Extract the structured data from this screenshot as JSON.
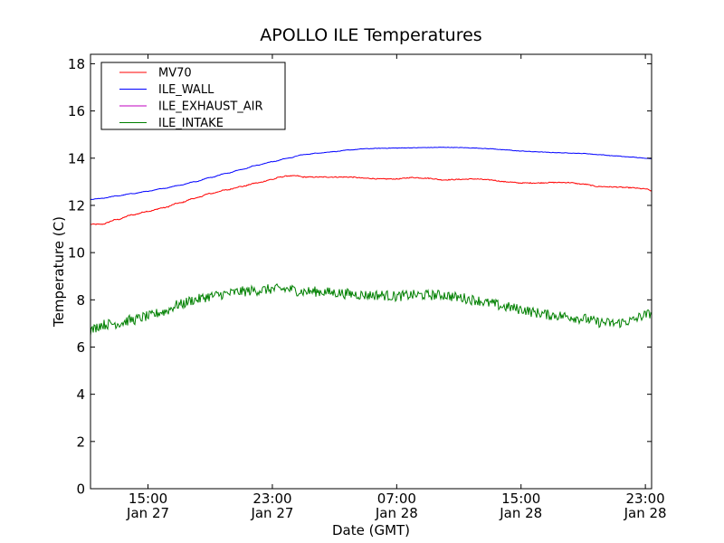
{
  "chart_data": {
    "type": "line",
    "title": "APOLLO ILE Temperatures",
    "xlabel": "Date (GMT)",
    "ylabel": "Temperature (C)",
    "xlim_hours": [
      11.3,
      47.4
    ],
    "ylim": [
      0,
      18.4
    ],
    "yticks": [
      0,
      2,
      4,
      6,
      8,
      10,
      12,
      14,
      16,
      18
    ],
    "xticks": [
      {
        "hour": 15,
        "time": "15:00",
        "date": "Jan 27"
      },
      {
        "hour": 23,
        "time": "23:00",
        "date": "Jan 27"
      },
      {
        "hour": 31,
        "time": "07:00",
        "date": "Jan 28"
      },
      {
        "hour": 39,
        "time": "15:00",
        "date": "Jan 28"
      },
      {
        "hour": 47,
        "time": "23:00",
        "date": "Jan 28"
      }
    ],
    "legend_position": "top-left",
    "series": [
      {
        "name": "MV70",
        "color": "#ff0000",
        "noise": 0.02,
        "points": [
          [
            11.3,
            11.2
          ],
          [
            12,
            11.2
          ],
          [
            13,
            11.4
          ],
          [
            14,
            11.6
          ],
          [
            15,
            11.75
          ],
          [
            16,
            11.9
          ],
          [
            17,
            12.1
          ],
          [
            18,
            12.3
          ],
          [
            19,
            12.5
          ],
          [
            20,
            12.65
          ],
          [
            21,
            12.8
          ],
          [
            22,
            12.95
          ],
          [
            23,
            13.1
          ],
          [
            23.5,
            13.2
          ],
          [
            24,
            13.25
          ],
          [
            24.6,
            13.25
          ],
          [
            25,
            13.2
          ],
          [
            26,
            13.2
          ],
          [
            27,
            13.2
          ],
          [
            28,
            13.2
          ],
          [
            29,
            13.15
          ],
          [
            30,
            13.12
          ],
          [
            31,
            13.12
          ],
          [
            32,
            13.18
          ],
          [
            33,
            13.15
          ],
          [
            34,
            13.08
          ],
          [
            35,
            13.1
          ],
          [
            36,
            13.12
          ],
          [
            37,
            13.08
          ],
          [
            38,
            13.0
          ],
          [
            39,
            12.95
          ],
          [
            40,
            12.95
          ],
          [
            41,
            12.97
          ],
          [
            42,
            12.97
          ],
          [
            43,
            12.9
          ],
          [
            44,
            12.8
          ],
          [
            45,
            12.78
          ],
          [
            46,
            12.75
          ],
          [
            47,
            12.7
          ],
          [
            47.4,
            12.62
          ]
        ]
      },
      {
        "name": "ILE_WALL",
        "color": "#0000ff",
        "noise": 0.01,
        "points": [
          [
            11.3,
            12.25
          ],
          [
            12,
            12.3
          ],
          [
            13,
            12.4
          ],
          [
            14,
            12.5
          ],
          [
            15,
            12.6
          ],
          [
            16,
            12.72
          ],
          [
            17,
            12.85
          ],
          [
            18,
            13.0
          ],
          [
            19,
            13.18
          ],
          [
            20,
            13.35
          ],
          [
            21,
            13.52
          ],
          [
            22,
            13.7
          ],
          [
            23,
            13.85
          ],
          [
            24,
            14.0
          ],
          [
            25,
            14.15
          ],
          [
            26,
            14.22
          ],
          [
            27,
            14.28
          ],
          [
            28,
            14.35
          ],
          [
            29,
            14.4
          ],
          [
            30,
            14.42
          ],
          [
            31,
            14.43
          ],
          [
            32,
            14.44
          ],
          [
            33,
            14.45
          ],
          [
            34,
            14.46
          ],
          [
            35,
            14.45
          ],
          [
            36,
            14.43
          ],
          [
            37,
            14.4
          ],
          [
            38,
            14.35
          ],
          [
            39,
            14.3
          ],
          [
            40,
            14.27
          ],
          [
            41,
            14.24
          ],
          [
            42,
            14.22
          ],
          [
            43,
            14.2
          ],
          [
            44,
            14.15
          ],
          [
            45,
            14.1
          ],
          [
            46,
            14.05
          ],
          [
            47,
            14.0
          ],
          [
            47.4,
            13.98
          ]
        ]
      },
      {
        "name": "ILE_EXHAUST_AIR",
        "color": "#bf00bf",
        "noise": 0,
        "points": []
      },
      {
        "name": "ILE_INTAKE",
        "color": "#008000",
        "noise": 0.22,
        "points": [
          [
            11.3,
            6.7
          ],
          [
            12,
            6.95
          ],
          [
            13,
            7.0
          ],
          [
            14,
            7.15
          ],
          [
            15,
            7.3
          ],
          [
            16,
            7.5
          ],
          [
            17,
            7.8
          ],
          [
            18,
            8.0
          ],
          [
            19,
            8.15
          ],
          [
            20,
            8.25
          ],
          [
            21,
            8.35
          ],
          [
            22,
            8.4
          ],
          [
            23,
            8.45
          ],
          [
            24,
            8.45
          ],
          [
            25,
            8.35
          ],
          [
            26,
            8.35
          ],
          [
            27,
            8.3
          ],
          [
            28,
            8.25
          ],
          [
            29,
            8.2
          ],
          [
            30,
            8.2
          ],
          [
            31,
            8.15
          ],
          [
            32,
            8.2
          ],
          [
            33,
            8.2
          ],
          [
            34,
            8.2
          ],
          [
            35,
            8.1
          ],
          [
            36,
            8.0
          ],
          [
            37,
            7.85
          ],
          [
            38,
            7.7
          ],
          [
            39,
            7.6
          ],
          [
            40,
            7.45
          ],
          [
            41,
            7.35
          ],
          [
            42,
            7.3
          ],
          [
            43,
            7.2
          ],
          [
            44,
            7.05
          ],
          [
            45,
            7.0
          ],
          [
            46,
            7.1
          ],
          [
            47,
            7.35
          ],
          [
            47.4,
            7.45
          ]
        ]
      }
    ]
  }
}
